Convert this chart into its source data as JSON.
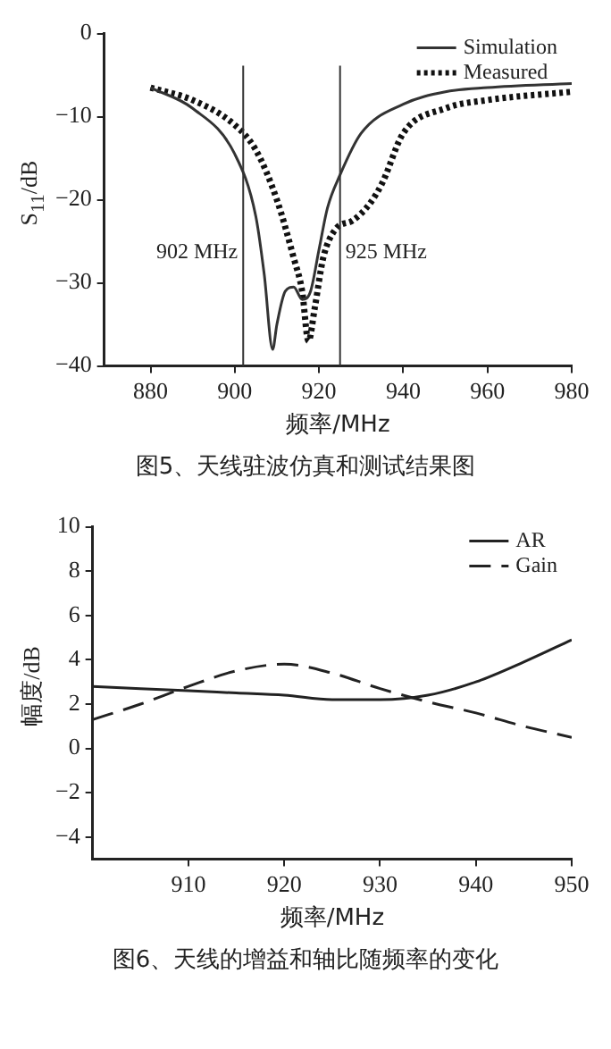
{
  "chart_data": [
    {
      "type": "line",
      "xlabel": "频率/MHz",
      "ylabel": "S$_{11}$/dB",
      "xlim": [
        869,
        980
      ],
      "xticks": [
        880,
        900,
        920,
        940,
        960,
        980
      ],
      "ylim": [
        -40,
        0
      ],
      "yticks": [
        0,
        -10,
        -20,
        -30,
        -40
      ],
      "grid": false,
      "legend": "top right",
      "annotations": [
        "图5、天线驻波仿真和测试结果图"
      ],
      "ref_lines": [
        {
          "axis": "x",
          "value": 902,
          "label": "902 MHz"
        },
        {
          "axis": "x",
          "value": 925,
          "label": "925 MHz"
        }
      ],
      "series": [
        {
          "name": "Simulation",
          "color": "#333333",
          "line_style": "solid",
          "x": [
            880,
            890,
            900,
            905,
            907,
            909,
            910,
            912,
            914,
            916,
            918,
            920,
            922,
            925,
            930,
            940,
            950,
            960,
            980
          ],
          "values": [
            -6.5,
            -9,
            -14.5,
            -22,
            -29,
            -38,
            -35,
            -31,
            -30.5,
            -32,
            -31,
            -26,
            -21,
            -17,
            -12,
            -8.5,
            -7,
            -6.5,
            -6
          ]
        },
        {
          "name": "Measured",
          "color": "#111111",
          "line_style": "dotted",
          "x": [
            880,
            890,
            900,
            905,
            910,
            914,
            916,
            917.5,
            919,
            921,
            924,
            928,
            932,
            935,
            940,
            950,
            960,
            980
          ],
          "values": [
            -6.5,
            -8,
            -11,
            -14,
            -20,
            -27,
            -31,
            -37,
            -33,
            -27,
            -23.5,
            -22.5,
            -20.5,
            -18,
            -12,
            -9,
            -8,
            -7
          ]
        }
      ]
    },
    {
      "type": "line",
      "xlabel": "频率/MHz",
      "ylabel": "幅度/dB",
      "xlim": [
        900,
        950
      ],
      "xticks": [
        910,
        920,
        930,
        940,
        950
      ],
      "ylim": [
        -5,
        10
      ],
      "yticks": [
        -4,
        -2,
        0,
        2,
        4,
        6,
        8,
        10
      ],
      "grid": false,
      "legend": "top right",
      "annotations": [
        "图6、天线的增益和轴比随频率的变化"
      ],
      "series": [
        {
          "name": "AR",
          "color": "#222222",
          "line_style": "solid",
          "x": [
            900,
            905,
            910,
            915,
            920,
            925,
            930,
            935,
            940,
            945,
            950
          ],
          "values": [
            2.8,
            2.7,
            2.6,
            2.5,
            2.4,
            2.2,
            2.2,
            2.4,
            3.0,
            3.9,
            4.9
          ]
        },
        {
          "name": "Gain",
          "color": "#222222",
          "line_style": "dashed",
          "x": [
            900,
            905,
            910,
            915,
            920,
            925,
            930,
            935,
            940,
            945,
            950
          ],
          "values": [
            1.3,
            2.0,
            2.8,
            3.5,
            3.8,
            3.4,
            2.7,
            2.1,
            1.6,
            1.0,
            0.5
          ]
        }
      ]
    }
  ]
}
